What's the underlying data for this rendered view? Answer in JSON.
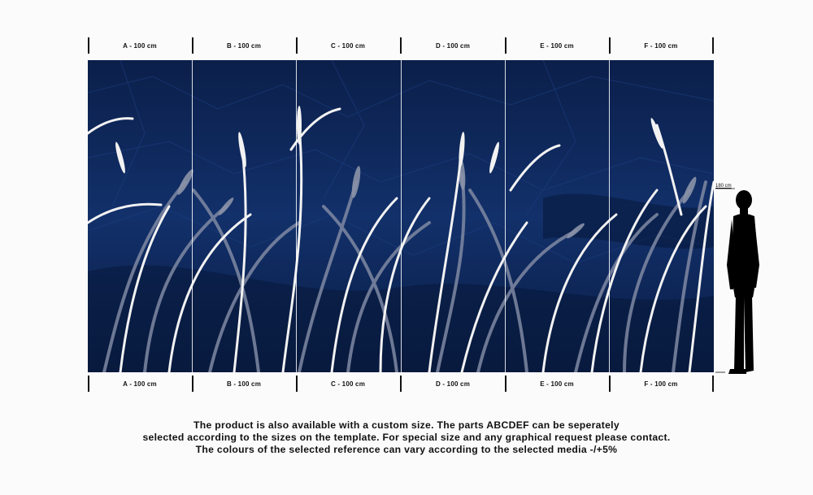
{
  "panels": [
    {
      "label": "A - 100 cm"
    },
    {
      "label": "B - 100 cm"
    },
    {
      "label": "C - 100 cm"
    },
    {
      "label": "D - 100 cm"
    },
    {
      "label": "E - 100 cm"
    },
    {
      "label": "F - 100 cm"
    }
  ],
  "figure": {
    "height_label": "180 cm"
  },
  "notice": {
    "line1": "The product is also available with a custom size. The parts ABCDEF can be seperately",
    "line2": "selected according to the sizes on the template. For special size and any graphical request please contact.",
    "line3": "The colours of the selected reference can vary according to the selected media -/+5%"
  },
  "colors": {
    "background": "#0f2a5c",
    "grass_light": "#f2f2f2",
    "grass_mid": "#8a93a8"
  }
}
